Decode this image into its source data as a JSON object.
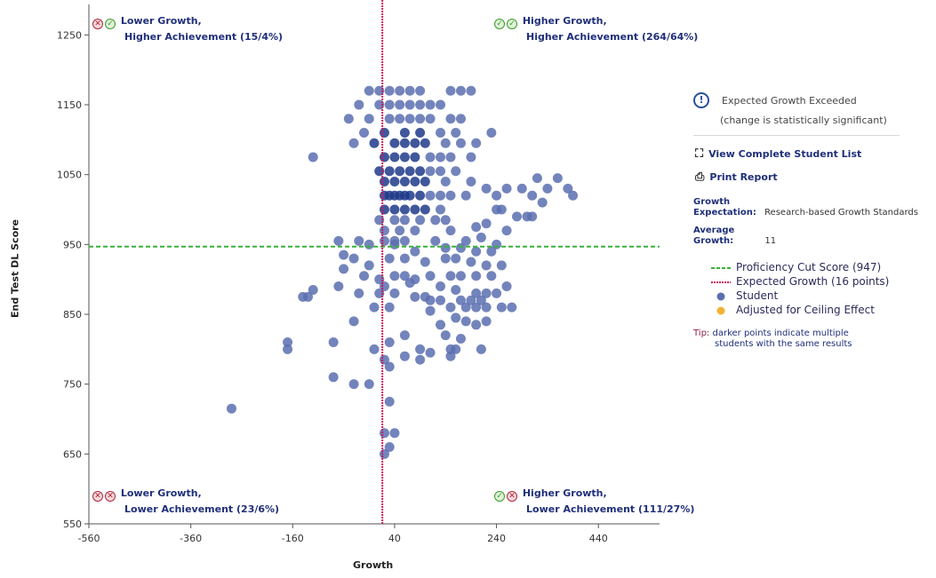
{
  "chart_data": {
    "type": "scatter",
    "xlabel": "Growth",
    "ylabel": "End Test DL Score",
    "xlim": [
      -560,
      560
    ],
    "ylim": [
      550,
      1300
    ],
    "x_ticks": [
      -560,
      -360,
      -160,
      40,
      240,
      440
    ],
    "y_ticks": [
      550,
      650,
      750,
      850,
      950,
      1050,
      1150,
      1250
    ],
    "proficiency_cut_score": 947,
    "expected_growth": 16,
    "quadrants": {
      "top_left": {
        "title": "Lower Growth,",
        "sub": "Higher Achievement (15/4%)"
      },
      "top_right": {
        "title": "Higher Growth,",
        "sub": "Higher Achievement (264/64%)"
      },
      "bottom_left": {
        "title": "Lower Growth,",
        "sub": "Lower Achievement (23/6%)"
      },
      "bottom_right": {
        "title": "Higher Growth,",
        "sub": "Lower Achievement (111/27%)"
      }
    },
    "series": [
      {
        "name": "Student",
        "points": [
          [
            -10,
            1170
          ],
          [
            10,
            1170
          ],
          [
            30,
            1170
          ],
          [
            50,
            1170
          ],
          [
            70,
            1170
          ],
          [
            90,
            1170
          ],
          [
            150,
            1170
          ],
          [
            170,
            1170
          ],
          [
            190,
            1170
          ],
          [
            -30,
            1150
          ],
          [
            10,
            1150
          ],
          [
            30,
            1150
          ],
          [
            50,
            1150
          ],
          [
            70,
            1150
          ],
          [
            90,
            1150
          ],
          [
            110,
            1150
          ],
          [
            130,
            1150
          ],
          [
            -50,
            1130
          ],
          [
            -10,
            1130
          ],
          [
            30,
            1130
          ],
          [
            50,
            1130
          ],
          [
            70,
            1130
          ],
          [
            90,
            1130
          ],
          [
            110,
            1130
          ],
          [
            150,
            1130
          ],
          [
            170,
            1130
          ],
          [
            -20,
            1110
          ],
          [
            20,
            1110
          ],
          [
            60,
            1110
          ],
          [
            90,
            1110
          ],
          [
            130,
            1110
          ],
          [
            160,
            1110
          ],
          [
            -40,
            1095
          ],
          [
            0,
            1095
          ],
          [
            40,
            1095
          ],
          [
            60,
            1095
          ],
          [
            80,
            1095
          ],
          [
            100,
            1095
          ],
          [
            140,
            1095
          ],
          [
            170,
            1095
          ],
          [
            200,
            1095
          ],
          [
            230,
            1110
          ],
          [
            -120,
            1075
          ],
          [
            20,
            1075
          ],
          [
            40,
            1075
          ],
          [
            60,
            1075
          ],
          [
            80,
            1075
          ],
          [
            110,
            1075
          ],
          [
            130,
            1075
          ],
          [
            150,
            1075
          ],
          [
            190,
            1075
          ],
          [
            10,
            1055
          ],
          [
            30,
            1055
          ],
          [
            50,
            1055
          ],
          [
            70,
            1055
          ],
          [
            90,
            1055
          ],
          [
            110,
            1055
          ],
          [
            130,
            1055
          ],
          [
            160,
            1055
          ],
          [
            20,
            1040
          ],
          [
            40,
            1040
          ],
          [
            60,
            1040
          ],
          [
            80,
            1040
          ],
          [
            100,
            1040
          ],
          [
            140,
            1040
          ],
          [
            190,
            1040
          ],
          [
            220,
            1030
          ],
          [
            240,
            1020
          ],
          [
            260,
            1030
          ],
          [
            290,
            1030
          ],
          [
            320,
            1045
          ],
          [
            340,
            1030
          ],
          [
            360,
            1045
          ],
          [
            380,
            1030
          ],
          [
            390,
            1020
          ],
          [
            20,
            1020
          ],
          [
            30,
            1020
          ],
          [
            40,
            1020
          ],
          [
            50,
            1020
          ],
          [
            60,
            1020
          ],
          [
            70,
            1020
          ],
          [
            90,
            1020
          ],
          [
            110,
            1020
          ],
          [
            130,
            1020
          ],
          [
            150,
            1020
          ],
          [
            180,
            1020
          ],
          [
            310,
            1020
          ],
          [
            330,
            1010
          ],
          [
            20,
            1000
          ],
          [
            40,
            1000
          ],
          [
            60,
            1000
          ],
          [
            80,
            1000
          ],
          [
            100,
            1000
          ],
          [
            130,
            1000
          ],
          [
            240,
            1000
          ],
          [
            250,
            1000
          ],
          [
            300,
            990
          ],
          [
            310,
            990
          ],
          [
            280,
            990
          ],
          [
            10,
            985
          ],
          [
            40,
            985
          ],
          [
            60,
            985
          ],
          [
            90,
            985
          ],
          [
            120,
            985
          ],
          [
            140,
            985
          ],
          [
            220,
            980
          ],
          [
            20,
            970
          ],
          [
            50,
            970
          ],
          [
            80,
            970
          ],
          [
            150,
            970
          ],
          [
            200,
            975
          ],
          [
            260,
            970
          ],
          [
            20,
            955
          ],
          [
            40,
            955
          ],
          [
            60,
            955
          ],
          [
            120,
            955
          ],
          [
            180,
            955
          ],
          [
            210,
            960
          ],
          [
            240,
            950
          ],
          [
            230,
            940
          ],
          [
            -70,
            955
          ],
          [
            -30,
            955
          ],
          [
            -10,
            950
          ],
          [
            40,
            950
          ],
          [
            80,
            940
          ],
          [
            140,
            945
          ],
          [
            170,
            945
          ],
          [
            200,
            940
          ],
          [
            -60,
            935
          ],
          [
            -40,
            930
          ],
          [
            -10,
            920
          ],
          [
            30,
            930
          ],
          [
            60,
            930
          ],
          [
            100,
            925
          ],
          [
            140,
            930
          ],
          [
            160,
            930
          ],
          [
            190,
            925
          ],
          [
            220,
            920
          ],
          [
            250,
            920
          ],
          [
            -60,
            915
          ],
          [
            -20,
            905
          ],
          [
            10,
            900
          ],
          [
            40,
            905
          ],
          [
            60,
            905
          ],
          [
            80,
            900
          ],
          [
            110,
            905
          ],
          [
            150,
            905
          ],
          [
            170,
            905
          ],
          [
            200,
            905
          ],
          [
            230,
            905
          ],
          [
            -70,
            890
          ],
          [
            20,
            890
          ],
          [
            70,
            895
          ],
          [
            130,
            890
          ],
          [
            160,
            885
          ],
          [
            200,
            880
          ],
          [
            220,
            880
          ],
          [
            260,
            890
          ],
          [
            -120,
            885
          ],
          [
            -30,
            880
          ],
          [
            10,
            880
          ],
          [
            40,
            880
          ],
          [
            100,
            875
          ],
          [
            130,
            870
          ],
          [
            170,
            870
          ],
          [
            190,
            870
          ],
          [
            210,
            870
          ],
          [
            240,
            880
          ],
          [
            -140,
            875
          ],
          [
            -130,
            875
          ],
          [
            80,
            875
          ],
          [
            110,
            870
          ],
          [
            150,
            860
          ],
          [
            180,
            860
          ],
          [
            200,
            860
          ],
          [
            220,
            860
          ],
          [
            250,
            860
          ],
          [
            270,
            860
          ],
          [
            0,
            860
          ],
          [
            30,
            860
          ],
          [
            110,
            855
          ],
          [
            160,
            845
          ],
          [
            180,
            840
          ],
          [
            200,
            835
          ],
          [
            220,
            840
          ],
          [
            -40,
            840
          ],
          [
            130,
            835
          ],
          [
            140,
            820
          ],
          [
            170,
            815
          ],
          [
            60,
            820
          ],
          [
            -170,
            810
          ],
          [
            -80,
            810
          ],
          [
            0,
            800
          ],
          [
            30,
            810
          ],
          [
            90,
            800
          ],
          [
            150,
            800
          ],
          [
            160,
            800
          ],
          [
            -170,
            800
          ],
          [
            110,
            795
          ],
          [
            210,
            800
          ],
          [
            20,
            785
          ],
          [
            90,
            785
          ],
          [
            60,
            790
          ],
          [
            150,
            790
          ],
          [
            30,
            775
          ],
          [
            -80,
            760
          ],
          [
            -40,
            750
          ],
          [
            -10,
            750
          ],
          [
            -280,
            715
          ],
          [
            30,
            725
          ],
          [
            20,
            680
          ],
          [
            40,
            680
          ],
          [
            30,
            660
          ],
          [
            20,
            650
          ]
        ]
      }
    ],
    "legend": [
      "Proficiency Cut Score (947)",
      "Expected Growth (16 points)",
      "Student",
      "Adjusted for Ceiling Effect"
    ]
  },
  "sidebar": {
    "exceeded_title": "Expected Growth Exceeded",
    "exceeded_sub": "(change is statistically significant)",
    "view_list": "View Complete Student List",
    "print_report": "Print Report",
    "growth_label": "Growth",
    "expectation_label": "Expectation:",
    "expectation_value": "Research-based Growth Standards",
    "average_label": "Average",
    "growth_label2": "Growth:",
    "average_value": "11",
    "tip_label": "Tip:",
    "tip_text1": "darker points indicate multiple",
    "tip_text2": "students with the same results"
  },
  "colors": {
    "point": "#5a6fb0",
    "point_dark": "#1f3a8a",
    "cut_line": "#3ab03a",
    "growth_line": "#c2185b",
    "ceiling": "#f2b233"
  }
}
